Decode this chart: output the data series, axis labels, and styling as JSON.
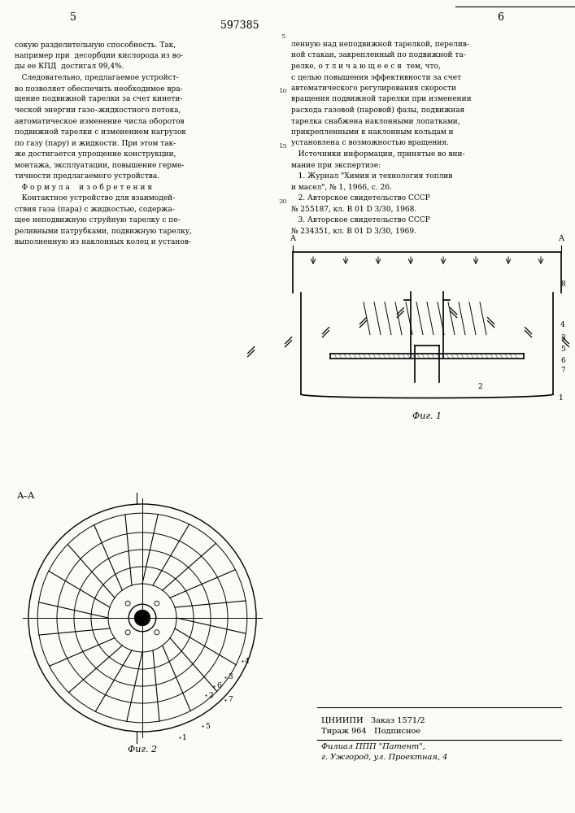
{
  "bg_color": "#f5f5f0",
  "page_color": "#fafaf7",
  "patent_number": "597385",
  "page_number_left": "5",
  "page_number_right": "6",
  "text_left_col": [
    "сокую разделительную способность. Так,",
    "например при  десорбции кислорода из во-",
    "ды ее КПД  достигал 99,4%.",
    "   Следовательно, предлагаемое устройст-",
    "во позволяет обеспечить необходимое вра-",
    "щение подвижной тарелки за счет кинети-",
    "ческой энергии газо–жидкостного потока,",
    "автоматическое изменение числа оборотов",
    "подвижной тарелки с изменением нагрузок",
    "по газу (пару) и жидкости. При этом так-",
    "же достигается упрощение конструкции,",
    "монтажа, эксплуатации, повышение герме-",
    "тичности предлагаемого устройства.",
    "   Ф о р м у л а    и з о б р е т е н и я",
    "   Контактное устройство для взаимодей-",
    "ствия газа (пара) с жидкостью, содержа-",
    "щее неподвижную струйную тарелку с пе-",
    "реливными патрубками, подвижную тарелку,",
    "выполненную из наклонных колец и установ-"
  ],
  "text_right_col": [
    "ленную над неподвижной тарелкой, перелив-",
    "ной стакан, закрепленный по подвижной та-",
    "релке, о т л и ч а ю щ е е с я  тем, что,",
    "с целью повышения эффективности за счет",
    "автоматического регулирования скорости",
    "вращения подвижной тарелки при изменении",
    "расхода газовой (паровой) фазы, подвижная",
    "тарелка снабжена наклонными лопатками,",
    "прикрепленными к наклонным кольцам и",
    "установлена с возможностью вращения.",
    "   Источники информации, принятые во вни-",
    "мание при экспертизе:",
    "   1. Журнал \"Химия и технология топлив",
    "и масел\", № 1, 1966, с. 26.",
    "   2. Авторское свидетельство СССР",
    "№ 255187, кл. В 01 D 3/30, 1968.",
    "   3. Авторское свидетельство СССР",
    "№ 234351, кл. В 01 D 3/30, 1969."
  ],
  "fig1_label": "Фиг. 1",
  "fig2_label": "Фиг. 2",
  "aa_label": "А–А",
  "bottom_text": [
    "ЦНИИПИ   Заказ 1571/2",
    "Тираж 964   Подписное",
    "",
    "Филиал ППП \"Патент\",",
    "г. Ужгород, ул. Проектная, 4"
  ]
}
